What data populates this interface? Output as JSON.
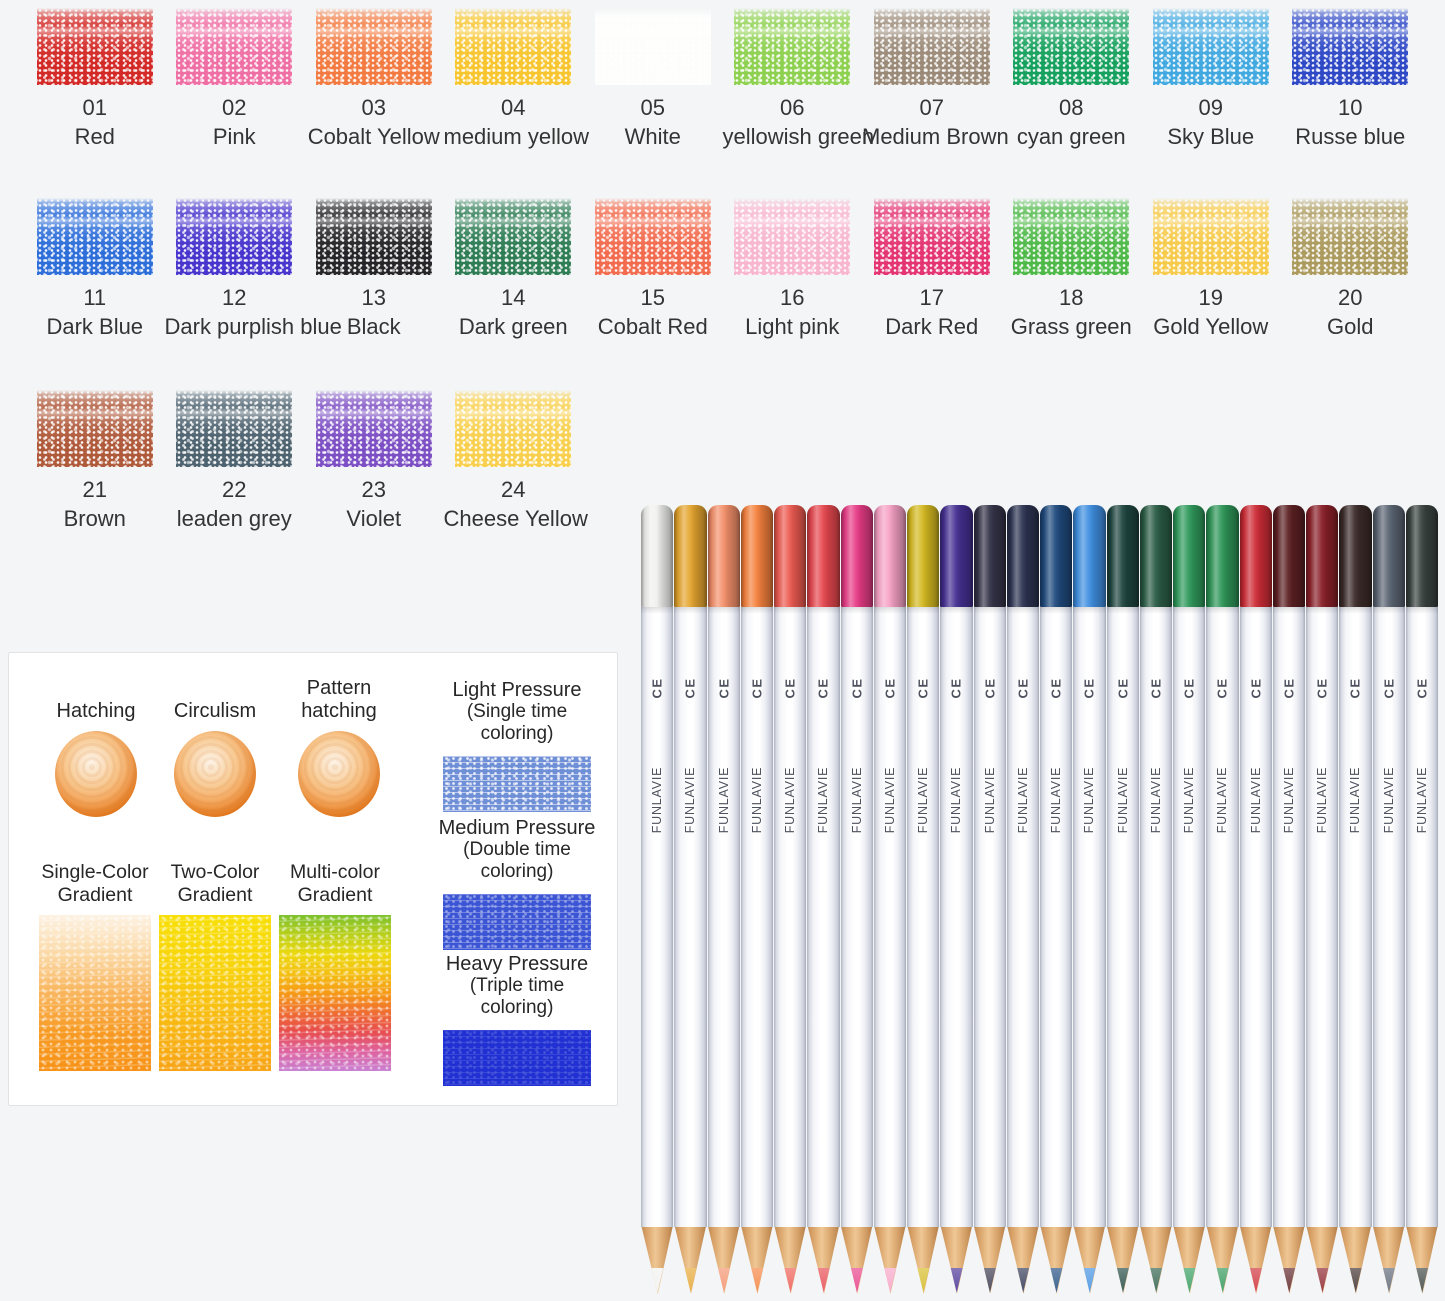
{
  "page": {
    "background": "#f3f5f6"
  },
  "palette": {
    "items": [
      {
        "num": "01",
        "name": "Red",
        "color": "#d32a27"
      },
      {
        "num": "02",
        "name": "Pink",
        "color": "#ef6fa5"
      },
      {
        "num": "03",
        "name": "Cobalt Yellow",
        "color": "#f37b42"
      },
      {
        "num": "04",
        "name": "medium yellow",
        "color": "#f7c52e"
      },
      {
        "num": "05",
        "name": "White",
        "color": "#fdfdfc"
      },
      {
        "num": "06",
        "name": "yellowish green",
        "color": "#8ed150"
      },
      {
        "num": "07",
        "name": "Medium Brown",
        "color": "#9b8a78"
      },
      {
        "num": "08",
        "name": "cyan green",
        "color": "#17a15e"
      },
      {
        "num": "09",
        "name": "Sky Blue",
        "color": "#42a9e0"
      },
      {
        "num": "10",
        "name": "Russe blue",
        "color": "#2f49c6"
      },
      {
        "num": "11",
        "name": "Dark Blue",
        "color": "#2e6ed9"
      },
      {
        "num": "12",
        "name": "Dark purplish blue",
        "color": "#4835cd"
      },
      {
        "num": "13",
        "name": "Black",
        "color": "#26262a"
      },
      {
        "num": "14",
        "name": "Dark green",
        "color": "#2e7d55"
      },
      {
        "num": "15",
        "name": "Cobalt Red",
        "color": "#f26b4e"
      },
      {
        "num": "16",
        "name": "Light pink",
        "color": "#f7b6ce"
      },
      {
        "num": "17",
        "name": "Dark Red",
        "color": "#e43572"
      },
      {
        "num": "18",
        "name": "Grass green",
        "color": "#4eb948"
      },
      {
        "num": "19",
        "name": "Gold Yellow",
        "color": "#f6ca4a"
      },
      {
        "num": "20",
        "name": "Gold",
        "color": "#ac9b5e"
      },
      {
        "num": "21",
        "name": "Brown",
        "color": "#b05a3c"
      },
      {
        "num": "22",
        "name": "leaden grey",
        "color": "#4e6370"
      },
      {
        "num": "23",
        "name": "Violet",
        "color": "#7d4fc4"
      },
      {
        "num": "24",
        "name": "Cheese Yellow",
        "color": "#f8d04e"
      }
    ]
  },
  "panel": {
    "techniques": [
      {
        "label": "Hatching"
      },
      {
        "label": "Circulism"
      },
      {
        "label": "Pattern hatching"
      }
    ],
    "ball_color": "#ee8325",
    "gradients": [
      {
        "label": "Single-Color Gradient",
        "stops": [
          "#fdf2e3",
          "#fbd9a6",
          "#f9b55c",
          "#f79b24",
          "#f79216"
        ]
      },
      {
        "label": "Two-Color Gradient",
        "stops": [
          "#f8e007",
          "#f8d30d",
          "#f8ba13",
          "#f7a315"
        ]
      },
      {
        "label": "Multi-color Gradient",
        "stops": [
          "#7cc12d",
          "#b8cf1b",
          "#ecd80e",
          "#f4c013",
          "#f59a16",
          "#ef6d31",
          "#e74d4e",
          "#de63a0",
          "#c981d2"
        ]
      }
    ],
    "pressures": [
      {
        "title": "Light Pressure",
        "subtitle": "(Single time coloring)",
        "color": "#6f8fd6"
      },
      {
        "title": "Medium Pressure",
        "subtitle": "(Double time coloring)",
        "color": "#3c55d4"
      },
      {
        "title": "Heavy Pressure",
        "subtitle": "(Triple time coloring)",
        "color": "#2030d2"
      }
    ]
  },
  "pencils": {
    "brand": "FUNLAVIE",
    "mark": "CE",
    "colors": [
      "#f1f1ef",
      "#e5a52f",
      "#f4906a",
      "#f5813d",
      "#ec5a50",
      "#e6474e",
      "#e73b86",
      "#f6a1c5",
      "#d4b920",
      "#453093",
      "#343449",
      "#2c3351",
      "#1f4a7e",
      "#3f8fe1",
      "#1e453f",
      "#2b5d46",
      "#2f9a5b",
      "#2d9556",
      "#ce2c36",
      "#5c2023",
      "#8a2028",
      "#3b2b29",
      "#5b6573",
      "#39423f"
    ]
  }
}
